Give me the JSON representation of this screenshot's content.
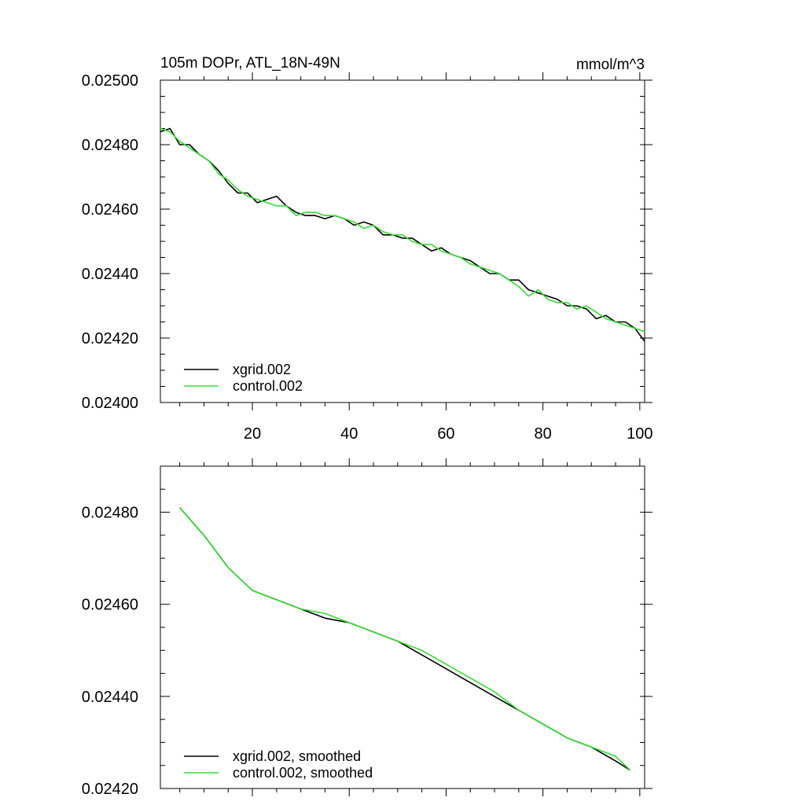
{
  "chart_data": [
    {
      "type": "line",
      "title": "105m DOPr, ATL_18N-49N",
      "units": "mmol/m^3",
      "xlabel": "",
      "ylabel": "",
      "xlim": [
        1,
        101
      ],
      "ylim": [
        0.024,
        0.025
      ],
      "x_ticks": [
        20,
        40,
        60,
        80,
        100
      ],
      "x_tick_labels": [
        "20",
        "40",
        "60",
        "80",
        "100"
      ],
      "y_ticks": [
        0.024,
        0.0242,
        0.0244,
        0.0246,
        0.0248,
        0.025
      ],
      "y_tick_labels": [
        "0.02400",
        "0.02420",
        "0.02440",
        "0.02460",
        "0.02480",
        "0.02500"
      ],
      "grid": false,
      "legend": "bottom-left",
      "series": [
        {
          "name": "xgrid.002",
          "color": "#000000",
          "x": [
            1,
            3,
            5,
            7,
            9,
            11,
            13,
            15,
            17,
            19,
            21,
            23,
            25,
            27,
            29,
            31,
            33,
            35,
            37,
            39,
            41,
            43,
            45,
            47,
            49,
            51,
            53,
            55,
            57,
            59,
            61,
            63,
            65,
            67,
            69,
            71,
            73,
            75,
            77,
            79,
            81,
            83,
            85,
            87,
            89,
            91,
            93,
            95,
            97,
            99,
            101
          ],
          "values": [
            0.02484,
            0.02485,
            0.0248,
            0.0248,
            0.02477,
            0.02475,
            0.02472,
            0.02468,
            0.02465,
            0.02465,
            0.02462,
            0.02463,
            0.02464,
            0.02461,
            0.02459,
            0.02458,
            0.02458,
            0.02457,
            0.02458,
            0.02457,
            0.02455,
            0.02456,
            0.02455,
            0.02452,
            0.02452,
            0.02451,
            0.02451,
            0.02449,
            0.02447,
            0.02448,
            0.02446,
            0.02445,
            0.02444,
            0.02442,
            0.0244,
            0.0244,
            0.02438,
            0.02438,
            0.02435,
            0.02434,
            0.02433,
            0.02432,
            0.0243,
            0.0243,
            0.02429,
            0.02426,
            0.02427,
            0.02425,
            0.02425,
            0.02423,
            0.02419
          ]
        },
        {
          "name": "control.002",
          "color": "#33dd33",
          "x": [
            1,
            3,
            5,
            7,
            9,
            11,
            13,
            15,
            17,
            19,
            21,
            23,
            25,
            27,
            29,
            31,
            33,
            35,
            37,
            39,
            41,
            43,
            45,
            47,
            49,
            51,
            53,
            55,
            57,
            59,
            61,
            63,
            65,
            67,
            69,
            71,
            73,
            75,
            77,
            79,
            81,
            83,
            85,
            87,
            89,
            91,
            93,
            95,
            97,
            99,
            101
          ],
          "values": [
            0.02485,
            0.02484,
            0.02481,
            0.02479,
            0.02477,
            0.02475,
            0.02471,
            0.02469,
            0.02466,
            0.02464,
            0.02463,
            0.02462,
            0.02461,
            0.02461,
            0.02458,
            0.02459,
            0.02459,
            0.02458,
            0.02458,
            0.02457,
            0.02456,
            0.02454,
            0.02455,
            0.02453,
            0.02452,
            0.02452,
            0.0245,
            0.02449,
            0.02449,
            0.02447,
            0.02446,
            0.02445,
            0.02443,
            0.02442,
            0.02441,
            0.0244,
            0.02438,
            0.02436,
            0.02433,
            0.02435,
            0.02432,
            0.02431,
            0.02431,
            0.02429,
            0.0243,
            0.02428,
            0.02426,
            0.02425,
            0.02424,
            0.02423,
            0.02422
          ]
        }
      ]
    },
    {
      "type": "line",
      "title": "",
      "xlabel": "",
      "ylabel": "",
      "xlim": [
        1,
        101
      ],
      "ylim": [
        0.0242,
        0.0249
      ],
      "x_ticks": [
        20,
        40,
        60,
        80,
        100
      ],
      "x_tick_labels": [],
      "y_ticks": [
        0.0242,
        0.0244,
        0.0246,
        0.0248
      ],
      "y_tick_labels": [
        "0.02420",
        "0.02440",
        "0.02460",
        "0.02480"
      ],
      "grid": false,
      "legend": "bottom-left",
      "series": [
        {
          "name": "xgrid.002, smoothed",
          "color": "#000000",
          "x": [
            5,
            10,
            15,
            20,
            25,
            30,
            35,
            40,
            45,
            50,
            55,
            60,
            65,
            70,
            75,
            80,
            85,
            90,
            95,
            98
          ],
          "values": [
            0.02481,
            0.02475,
            0.02468,
            0.02463,
            0.02461,
            0.02459,
            0.02457,
            0.02456,
            0.02454,
            0.02452,
            0.02449,
            0.02446,
            0.02443,
            0.0244,
            0.02437,
            0.02434,
            0.02431,
            0.02429,
            0.02426,
            0.02424
          ]
        },
        {
          "name": "control.002, smoothed",
          "color": "#33dd33",
          "x": [
            5,
            10,
            15,
            20,
            25,
            30,
            35,
            40,
            45,
            50,
            55,
            60,
            65,
            70,
            75,
            80,
            85,
            90,
            95,
            98
          ],
          "values": [
            0.02481,
            0.02475,
            0.02468,
            0.02463,
            0.02461,
            0.02459,
            0.02458,
            0.02456,
            0.02454,
            0.02452,
            0.0245,
            0.02447,
            0.02444,
            0.02441,
            0.02437,
            0.02434,
            0.02431,
            0.02429,
            0.02427,
            0.02424
          ]
        }
      ]
    }
  ]
}
